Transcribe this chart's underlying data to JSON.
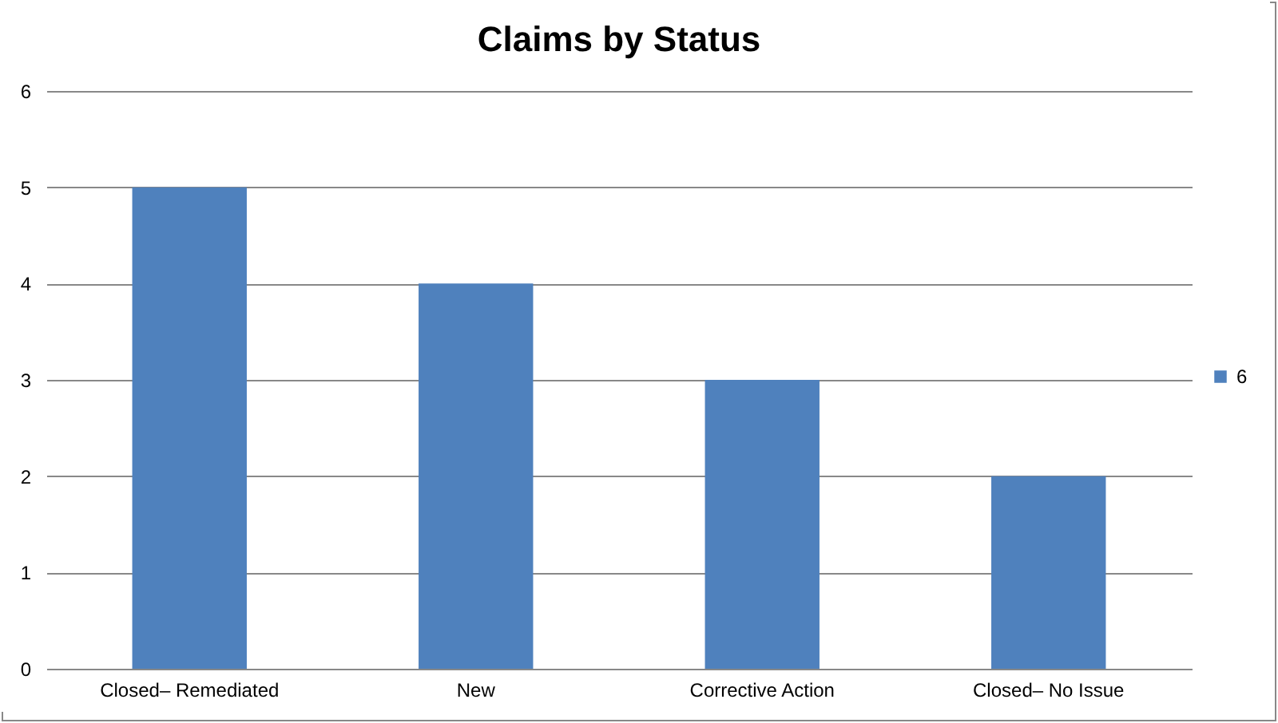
{
  "chart_data": {
    "type": "bar",
    "title": "Claims by Status",
    "categories": [
      "Closed– Remediated",
      "New",
      "Corrective Action",
      "Closed– No Issue"
    ],
    "series": [
      {
        "name": "6",
        "color": "#4f81bd",
        "values": [
          5,
          4,
          3,
          2
        ]
      }
    ],
    "ylim": [
      0,
      6
    ],
    "yticks": [
      0,
      1,
      2,
      3,
      4,
      5,
      6
    ],
    "grid": "y",
    "legend": "right"
  }
}
